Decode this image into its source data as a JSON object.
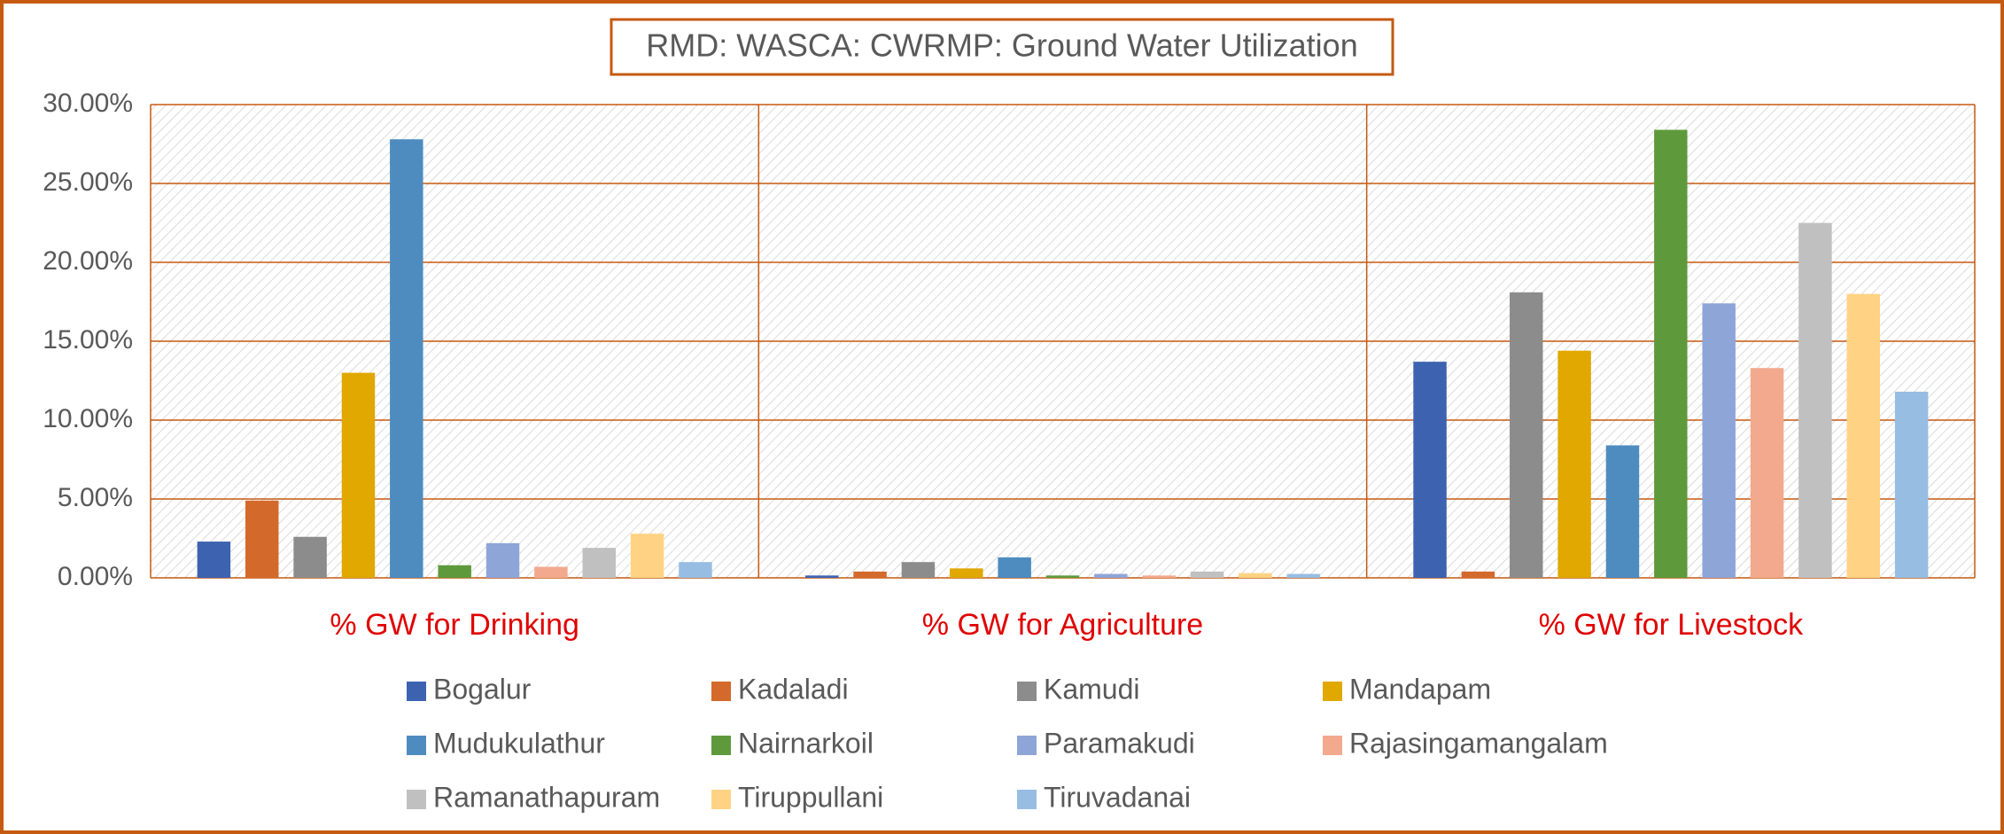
{
  "chart_data": {
    "type": "bar",
    "title": "RMD: WASCA: CWRMP: Ground Water Utilization",
    "categories": [
      "% GW for Drinking",
      "% GW for Agriculture",
      "% GW for Livestock"
    ],
    "series": [
      {
        "name": "Bogalur",
        "color": "#3d63b0",
        "values": [
          2.3,
          0.15,
          13.7
        ]
      },
      {
        "name": "Kadaladi",
        "color": "#d4692c",
        "values": [
          4.9,
          0.4,
          0.4
        ]
      },
      {
        "name": "Kamudi",
        "color": "#8c8c8c",
        "values": [
          2.6,
          1.0,
          18.1
        ]
      },
      {
        "name": "Mandapam",
        "color": "#e0a800",
        "values": [
          13.0,
          0.6,
          14.4
        ]
      },
      {
        "name": "Mudukulathur",
        "color": "#4e8cc0",
        "values": [
          27.8,
          1.3,
          8.4
        ]
      },
      {
        "name": "Nairnarkoil",
        "color": "#5e9a3c",
        "values": [
          0.8,
          0.15,
          28.4
        ]
      },
      {
        "name": "Paramakudi",
        "color": "#8ea5d8",
        "values": [
          2.2,
          0.25,
          17.4
        ]
      },
      {
        "name": "Rajasingamangalam",
        "color": "#f2a98e",
        "values": [
          0.7,
          0.15,
          13.3
        ]
      },
      {
        "name": "Ramanathapuram",
        "color": "#c0c0c0",
        "values": [
          1.9,
          0.4,
          22.5
        ]
      },
      {
        "name": "Tiruppullani",
        "color": "#ffd383",
        "values": [
          2.8,
          0.3,
          18.0
        ]
      },
      {
        "name": "Tiruvadanai",
        "color": "#97bde3",
        "values": [
          1.0,
          0.25,
          11.8
        ]
      }
    ],
    "ylim": [
      0,
      30
    ],
    "yticks": [
      {
        "value": 0,
        "label": "0.00%"
      },
      {
        "value": 5,
        "label": "5.00%"
      },
      {
        "value": 10,
        "label": "10.00%"
      },
      {
        "value": 15,
        "label": "15.00%"
      },
      {
        "value": 20,
        "label": "20.00%"
      },
      {
        "value": 25,
        "label": "25.00%"
      },
      {
        "value": 30,
        "label": "30.00%"
      }
    ],
    "grid": true,
    "legend": "bottom"
  }
}
